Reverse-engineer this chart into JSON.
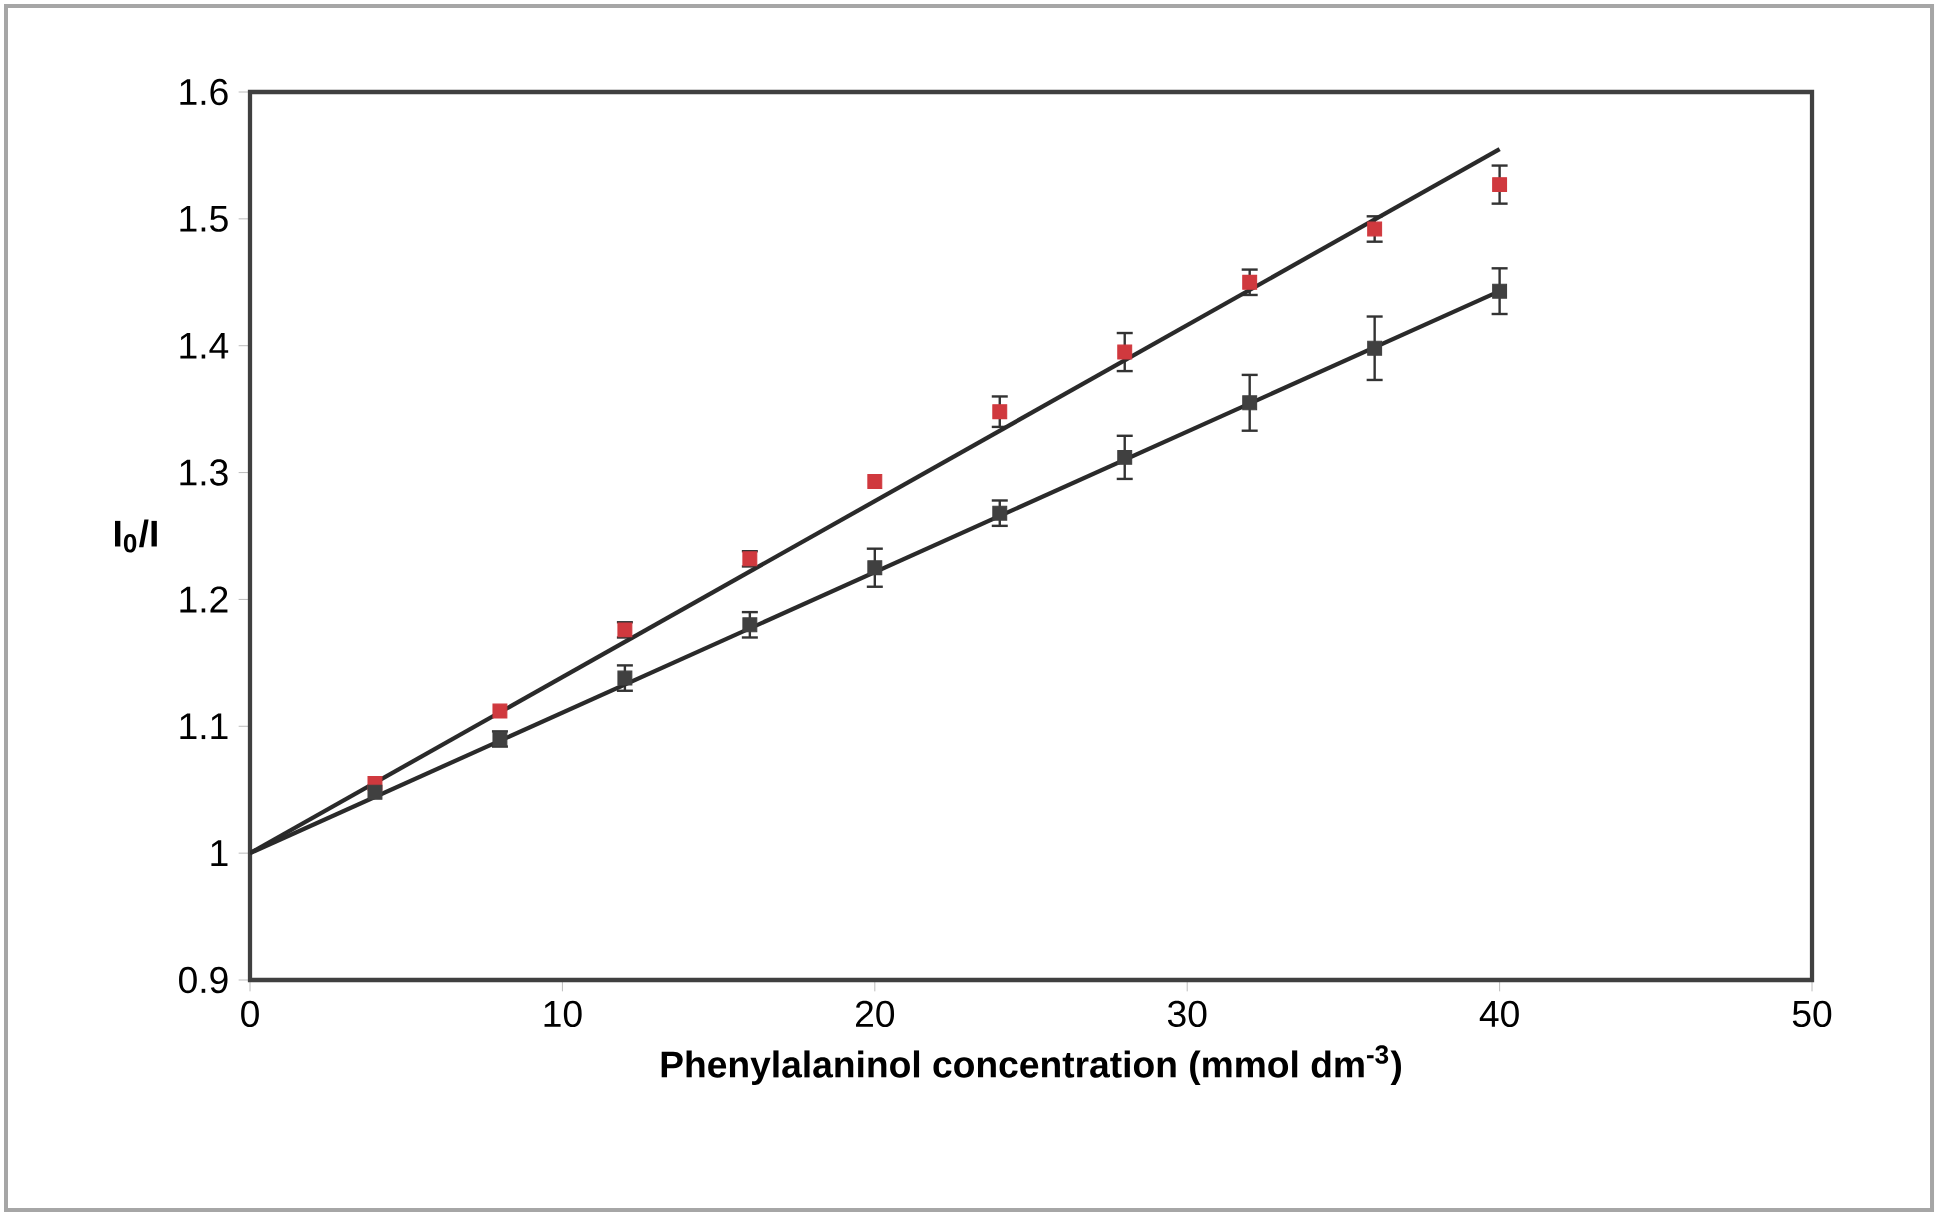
{
  "chart_data": {
    "type": "scatter",
    "xlabel": "Phenylalaninol concentration (mmol dm$^{-3}$)",
    "ylabel": "I$_{0}$/I",
    "xlim": [
      0,
      50
    ],
    "ylim": [
      0.9,
      1.6
    ],
    "xticks": [
      0,
      10,
      20,
      30,
      40,
      50
    ],
    "yticks": [
      0.9,
      1,
      1.1,
      1.2,
      1.3,
      1.4,
      1.5,
      1.6
    ],
    "marker": "square",
    "grid": false,
    "series": [
      {
        "color": "#d0393e",
        "x": [
          4,
          8,
          12,
          16,
          20,
          24,
          28,
          32,
          36,
          40
        ],
        "values": [
          1.055,
          1.112,
          1.176,
          1.232,
          1.293,
          1.348,
          1.395,
          1.45,
          1.492,
          1.527
        ],
        "errors": [
          null,
          null,
          0.006,
          0.006,
          null,
          0.012,
          0.015,
          0.01,
          0.01,
          0.015
        ]
      },
      {
        "color": "#404040",
        "x": [
          4,
          8,
          12,
          16,
          20,
          24,
          28,
          32,
          36,
          40
        ],
        "values": [
          1.048,
          1.09,
          1.138,
          1.18,
          1.225,
          1.268,
          1.312,
          1.355,
          1.398,
          1.443
        ],
        "errors": [
          null,
          0.006,
          0.01,
          0.01,
          0.015,
          0.01,
          0.017,
          0.022,
          0.025,
          0.018
        ]
      },
      {
        "type": "line",
        "color": "#2a2a2a",
        "x": [
          0,
          40
        ],
        "values": [
          1.0,
          1.555
        ],
        "marker": "none"
      },
      {
        "type": "line",
        "color": "#2a2a2a",
        "x": [
          0,
          40
        ],
        "values": [
          1.0,
          1.443
        ],
        "marker": "none"
      }
    ]
  }
}
